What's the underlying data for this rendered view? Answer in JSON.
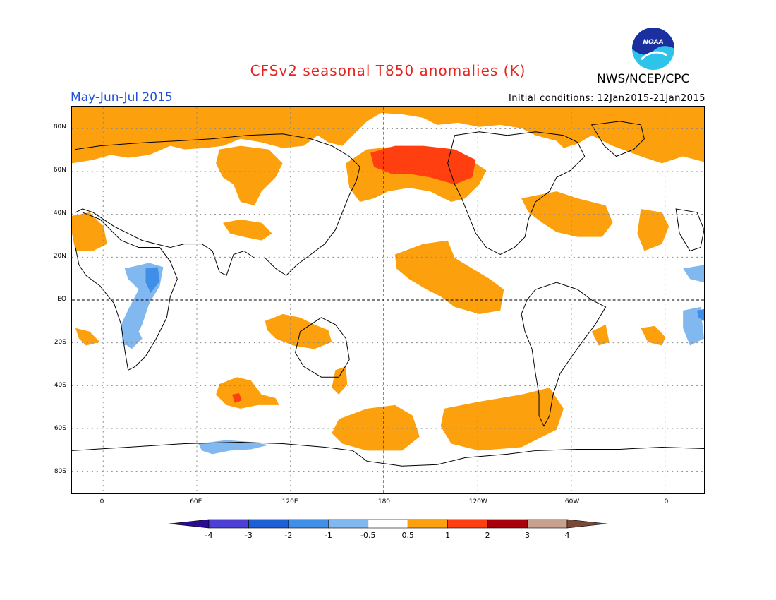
{
  "header": {
    "title": "CFSv2 seasonal T850 anomalies (K)",
    "agency": "NWS/NCEP/CPC",
    "season": "May-Jun-Jul 2015",
    "initial_conditions": "Initial conditions: 12Jan2015-21Jan2015",
    "logo_text": "NOAA"
  },
  "map": {
    "projection": "equirectangular",
    "lat_labels": [
      "80N",
      "60N",
      "40N",
      "20N",
      "EQ",
      "20S",
      "40S",
      "60S",
      "80S"
    ],
    "lon_labels": [
      "0",
      "60E",
      "120E",
      "180",
      "120W",
      "60W",
      "0"
    ],
    "lat_values": [
      80,
      60,
      40,
      20,
      0,
      -20,
      -40,
      -60,
      -80
    ],
    "lon_values": [
      0,
      60,
      120,
      180,
      240,
      300,
      360
    ],
    "lon_range": [
      -20,
      385
    ],
    "lat_range": [
      -90,
      90
    ],
    "grid": true
  },
  "colorbar": {
    "labels": [
      "-4",
      "-3",
      "-2",
      "-1",
      "-0.5",
      "0.5",
      "1",
      "2",
      "3",
      "4"
    ],
    "colors": [
      "#2a0d8e",
      "#4b3fd6",
      "#1f5fd6",
      "#3f8ee8",
      "#82b8f0",
      "#ffffff",
      "#fca00d",
      "#ff3f0f",
      "#a8000a",
      "#c8a08e",
      "#7a4a38"
    ]
  }
}
